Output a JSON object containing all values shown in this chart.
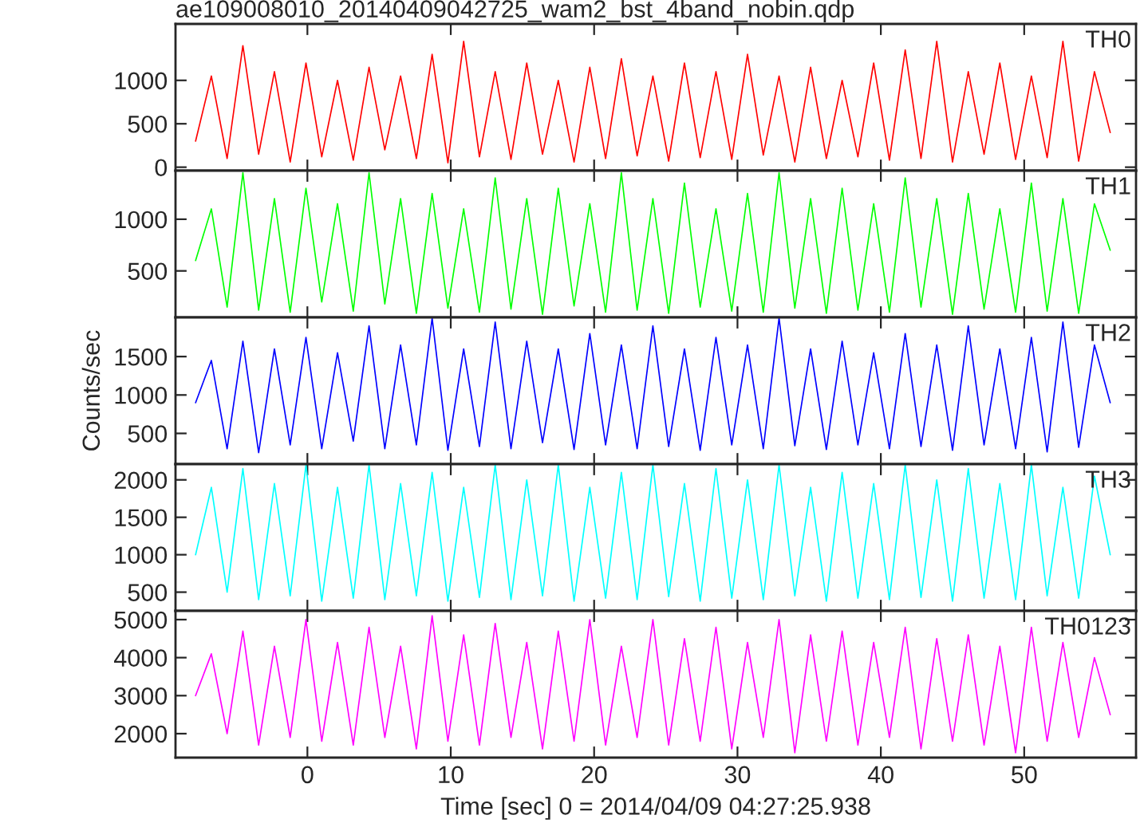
{
  "chart_data": [
    {
      "type": "line",
      "title": "ae109008010_20140409042725_wam2_bst_4band_nobin.qdp",
      "xlim": [
        -9.2,
        57.8
      ],
      "xticks": [
        0,
        10,
        20,
        30,
        40,
        50
      ],
      "ylim": [
        -40,
        1650
      ],
      "yticks": [
        0,
        500,
        1000
      ],
      "tick_labels": "y",
      "grid": false,
      "legend": false,
      "marker": "none",
      "line_style": "solid",
      "x": [
        -7.8,
        -6.7,
        -5.6,
        -4.5,
        -3.4,
        -2.3,
        -1.2,
        -0.1,
        1.0,
        2.1,
        3.2,
        4.3,
        5.4,
        6.5,
        7.6,
        8.7,
        9.8,
        10.9,
        12.0,
        13.1,
        14.2,
        15.3,
        16.4,
        17.5,
        18.6,
        19.7,
        20.8,
        21.9,
        23.0,
        24.1,
        25.2,
        26.3,
        27.4,
        28.5,
        29.6,
        30.7,
        31.8,
        32.9,
        34.0,
        35.1,
        36.2,
        37.3,
        38.4,
        39.5,
        40.6,
        41.7,
        42.8,
        43.9,
        45.0,
        46.1,
        47.2,
        48.3,
        49.4,
        50.5,
        51.6,
        52.7,
        53.8,
        54.9,
        56.0
      ],
      "series": [
        {
          "name": "TH0",
          "color": "#ff0000",
          "values": [
            300,
            1050,
            100,
            1400,
            150,
            1100,
            60,
            1200,
            120,
            1000,
            80,
            1150,
            200,
            1050,
            100,
            1300,
            50,
            1450,
            120,
            1100,
            90,
            1200,
            150,
            1000,
            60,
            1150,
            100,
            1250,
            130,
            1050,
            70,
            1200,
            110,
            1100,
            90,
            1300,
            140,
            1050,
            60,
            1150,
            100,
            1000,
            120,
            1200,
            80,
            1350,
            100,
            1450,
            60,
            1100,
            150,
            1200,
            90,
            1050,
            110,
            1450,
            70,
            1100,
            400
          ]
        }
      ]
    },
    {
      "type": "line",
      "xlim": [
        -9.2,
        57.8
      ],
      "xticks": [
        0,
        10,
        20,
        30,
        40,
        50
      ],
      "ylim": [
        50,
        1470
      ],
      "yticks": [
        500,
        1000
      ],
      "tick_labels": "y",
      "grid": false,
      "legend": false,
      "marker": "none",
      "line_style": "solid",
      "x": [
        -7.8,
        -6.7,
        -5.6,
        -4.5,
        -3.4,
        -2.3,
        -1.2,
        -0.1,
        1.0,
        2.1,
        3.2,
        4.3,
        5.4,
        6.5,
        7.6,
        8.7,
        9.8,
        10.9,
        12.0,
        13.1,
        14.2,
        15.3,
        16.4,
        17.5,
        18.6,
        19.7,
        20.8,
        21.9,
        23.0,
        24.1,
        25.2,
        26.3,
        27.4,
        28.5,
        29.6,
        30.7,
        31.8,
        32.9,
        34.0,
        35.1,
        36.2,
        37.3,
        38.4,
        39.5,
        40.6,
        41.7,
        42.8,
        43.9,
        45.0,
        46.1,
        47.2,
        48.3,
        49.4,
        50.5,
        51.6,
        52.7,
        53.8,
        54.9,
        56.0
      ],
      "series": [
        {
          "name": "TH1",
          "color": "#00ff00",
          "values": [
            600,
            1100,
            150,
            1450,
            120,
            1200,
            100,
            1300,
            200,
            1150,
            110,
            1450,
            180,
            1200,
            90,
            1250,
            140,
            1100,
            100,
            1400,
            130,
            1200,
            80,
            1300,
            160,
            1150,
            100,
            1450,
            120,
            1200,
            90,
            1350,
            150,
            1100,
            110,
            1250,
            100,
            1450,
            140,
            1200,
            90,
            1300,
            120,
            1150,
            100,
            1400,
            150,
            1200,
            80,
            1250,
            130,
            1100,
            100,
            1350,
            110,
            1200,
            90,
            1150,
            700
          ]
        }
      ]
    },
    {
      "type": "line",
      "ylabel": "Counts/sec",
      "xlim": [
        -9.2,
        57.8
      ],
      "xticks": [
        0,
        10,
        20,
        30,
        40,
        50
      ],
      "ylim": [
        100,
        2010
      ],
      "yticks": [
        500,
        1000,
        1500
      ],
      "tick_labels": "y",
      "grid": false,
      "legend": false,
      "marker": "none",
      "line_style": "solid",
      "x": [
        -7.8,
        -6.7,
        -5.6,
        -4.5,
        -3.4,
        -2.3,
        -1.2,
        -0.1,
        1.0,
        2.1,
        3.2,
        4.3,
        5.4,
        6.5,
        7.6,
        8.7,
        9.8,
        10.9,
        12.0,
        13.1,
        14.2,
        15.3,
        16.4,
        17.5,
        18.6,
        19.7,
        20.8,
        21.9,
        23.0,
        24.1,
        25.2,
        26.3,
        27.4,
        28.5,
        29.6,
        30.7,
        31.8,
        32.9,
        34.0,
        35.1,
        36.2,
        37.3,
        38.4,
        39.5,
        40.6,
        41.7,
        42.8,
        43.9,
        45.0,
        46.1,
        47.2,
        48.3,
        49.4,
        50.5,
        51.6,
        52.7,
        53.8,
        54.9,
        56.0
      ],
      "series": [
        {
          "name": "TH2",
          "color": "#0000ff",
          "values": [
            900,
            1450,
            300,
            1700,
            250,
            1600,
            350,
            1750,
            300,
            1550,
            400,
            1900,
            300,
            1650,
            350,
            2000,
            280,
            1600,
            330,
            1950,
            300,
            1700,
            380,
            1600,
            290,
            1800,
            350,
            1650,
            300,
            1900,
            330,
            1600,
            280,
            1750,
            350,
            1650,
            300,
            2000,
            340,
            1600,
            290,
            1700,
            350,
            1550,
            300,
            1800,
            330,
            1650,
            280,
            1900,
            350,
            1600,
            300,
            1750,
            260,
            1950,
            320,
            1650,
            900
          ]
        }
      ]
    },
    {
      "type": "line",
      "xlim": [
        -9.2,
        57.8
      ],
      "xticks": [
        0,
        10,
        20,
        30,
        40,
        50
      ],
      "ylim": [
        250,
        2210
      ],
      "yticks": [
        500,
        1000,
        1500,
        2000
      ],
      "tick_labels": "y",
      "grid": false,
      "legend": false,
      "marker": "none",
      "line_style": "solid",
      "x": [
        -7.8,
        -6.7,
        -5.6,
        -4.5,
        -3.4,
        -2.3,
        -1.2,
        -0.1,
        1.0,
        2.1,
        3.2,
        4.3,
        5.4,
        6.5,
        7.6,
        8.7,
        9.8,
        10.9,
        12.0,
        13.1,
        14.2,
        15.3,
        16.4,
        17.5,
        18.6,
        19.7,
        20.8,
        21.9,
        23.0,
        24.1,
        25.2,
        26.3,
        27.4,
        28.5,
        29.6,
        30.7,
        31.8,
        32.9,
        34.0,
        35.1,
        36.2,
        37.3,
        38.4,
        39.5,
        40.6,
        41.7,
        42.8,
        43.9,
        45.0,
        46.1,
        47.2,
        48.3,
        49.4,
        50.5,
        51.6,
        52.7,
        53.8,
        54.9,
        56.0
      ],
      "series": [
        {
          "name": "TH3",
          "color": "#00ffff",
          "values": [
            1000,
            1900,
            500,
            2150,
            400,
            1950,
            450,
            2200,
            380,
            1900,
            420,
            2200,
            400,
            1950,
            450,
            2100,
            380,
            1900,
            430,
            2200,
            400,
            2000,
            450,
            2200,
            380,
            1900,
            420,
            2100,
            400,
            2200,
            440,
            1950,
            380,
            2150,
            420,
            2000,
            400,
            2200,
            450,
            1900,
            380,
            2100,
            420,
            1950,
            400,
            2200,
            430,
            2000,
            380,
            2150,
            420,
            1950,
            400,
            2200,
            450,
            1900,
            420,
            2050,
            1000
          ]
        }
      ]
    },
    {
      "type": "line",
      "xlabel": "Time [sec] 0 = 2014/04/09 04:27:25.938",
      "xlim": [
        -9.2,
        57.8
      ],
      "xticks": [
        0,
        10,
        20,
        30,
        40,
        50
      ],
      "ylim": [
        1370,
        5230
      ],
      "yticks": [
        2000,
        3000,
        4000,
        5000
      ],
      "grid": false,
      "legend": false,
      "marker": "none",
      "line_style": "solid",
      "x": [
        -7.8,
        -6.7,
        -5.6,
        -4.5,
        -3.4,
        -2.3,
        -1.2,
        -0.1,
        1.0,
        2.1,
        3.2,
        4.3,
        5.4,
        6.5,
        7.6,
        8.7,
        9.8,
        10.9,
        12.0,
        13.1,
        14.2,
        15.3,
        16.4,
        17.5,
        18.6,
        19.7,
        20.8,
        21.9,
        23.0,
        24.1,
        25.2,
        26.3,
        27.4,
        28.5,
        29.6,
        30.7,
        31.8,
        32.9,
        34.0,
        35.1,
        36.2,
        37.3,
        38.4,
        39.5,
        40.6,
        41.7,
        42.8,
        43.9,
        45.0,
        46.1,
        47.2,
        48.3,
        49.4,
        50.5,
        51.6,
        52.7,
        53.8,
        54.9,
        56.0
      ],
      "series": [
        {
          "name": "TH0123",
          "color": "#ff00ff",
          "values": [
            3000,
            4100,
            2000,
            4700,
            1700,
            4300,
            1900,
            5000,
            1800,
            4400,
            1700,
            4800,
            1900,
            4300,
            1600,
            5100,
            1800,
            4600,
            1700,
            4900,
            1900,
            4400,
            1600,
            4700,
            1800,
            5000,
            1700,
            4300,
            1900,
            5000,
            1700,
            4500,
            1800,
            4800,
            1600,
            4400,
            1900,
            5000,
            1500,
            4600,
            1800,
            4700,
            1700,
            4400,
            1900,
            4800,
            1600,
            4500,
            1800,
            4600,
            1700,
            4300,
            1500,
            4800,
            1800,
            4400,
            1900,
            4000,
            2500
          ]
        }
      ]
    }
  ]
}
